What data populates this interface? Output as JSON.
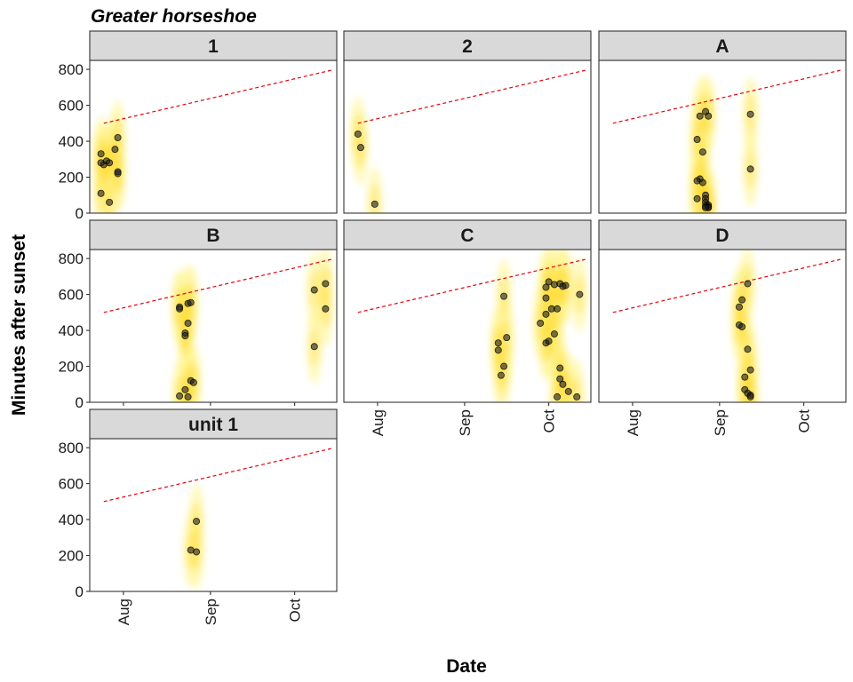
{
  "chart_data": {
    "type": "scatter",
    "title": "Greater horseshoe",
    "xlabel": "Date",
    "ylabel": "Minutes after sunset",
    "ylim": [
      0,
      850
    ],
    "yticks": [
      0,
      200,
      400,
      600,
      800
    ],
    "xticks": [
      "Aug",
      "Sep",
      "Oct"
    ],
    "xtick_dates": [
      "08-01",
      "09-01",
      "10-01"
    ],
    "xlim_dates": [
      "07-20",
      "10-16"
    ],
    "sunrise_line": {
      "style": "dashed",
      "color": "#e8000b",
      "points": [
        [
          "07-25",
          500
        ],
        [
          "10-14",
          795
        ]
      ]
    },
    "density_colors": [
      "#fffde0",
      "#fff27a",
      "#ffd000",
      "#ff9500",
      "#e85a00"
    ],
    "point_color": "#1a1a1a",
    "panels": [
      {
        "label": "1",
        "points": [
          [
            "07-24",
            330
          ],
          [
            "07-24",
            280
          ],
          [
            "07-25",
            270
          ],
          [
            "07-26",
            290
          ],
          [
            "07-24",
            110
          ],
          [
            "07-27",
            60
          ],
          [
            "07-30",
            420
          ],
          [
            "07-29",
            355
          ],
          [
            "07-30",
            230
          ],
          [
            "07-30",
            220
          ],
          [
            "07-27",
            280
          ]
        ]
      },
      {
        "label": "2",
        "points": [
          [
            "07-25",
            440
          ],
          [
            "07-26",
            365
          ],
          [
            "07-31",
            50
          ]
        ]
      },
      {
        "label": "A",
        "points": [
          [
            "08-24",
            410
          ],
          [
            "08-25",
            540
          ],
          [
            "08-27",
            565
          ],
          [
            "08-28",
            540
          ],
          [
            "08-26",
            340
          ],
          [
            "08-25",
            190
          ],
          [
            "08-24",
            180
          ],
          [
            "08-26",
            170
          ],
          [
            "08-24",
            80
          ],
          [
            "08-27",
            100
          ],
          [
            "08-27",
            80
          ],
          [
            "08-27",
            60
          ],
          [
            "08-28",
            45
          ],
          [
            "08-27",
            40
          ],
          [
            "08-28",
            35
          ],
          [
            "08-28",
            30
          ],
          [
            "08-27",
            30
          ],
          [
            "09-12",
            550
          ],
          [
            "09-12",
            245
          ]
        ]
      },
      {
        "label": "B",
        "points": [
          [
            "08-21",
            530
          ],
          [
            "08-21",
            520
          ],
          [
            "08-24",
            550
          ],
          [
            "08-25",
            555
          ],
          [
            "08-24",
            440
          ],
          [
            "08-23",
            385
          ],
          [
            "08-23",
            370
          ],
          [
            "08-25",
            120
          ],
          [
            "08-26",
            110
          ],
          [
            "08-23",
            70
          ],
          [
            "08-24",
            30
          ],
          [
            "08-21",
            35
          ],
          [
            "10-08",
            310
          ],
          [
            "10-08",
            625
          ],
          [
            "10-12",
            660
          ],
          [
            "10-12",
            520
          ]
        ]
      },
      {
        "label": "C",
        "points": [
          [
            "09-13",
            330
          ],
          [
            "09-13",
            290
          ],
          [
            "09-15",
            590
          ],
          [
            "09-15",
            200
          ],
          [
            "09-14",
            150
          ],
          [
            "09-16",
            360
          ],
          [
            "09-30",
            640
          ],
          [
            "10-01",
            670
          ],
          [
            "10-03",
            655
          ],
          [
            "10-05",
            660
          ],
          [
            "10-06",
            645
          ],
          [
            "10-07",
            650
          ],
          [
            "09-30",
            580
          ],
          [
            "10-02",
            520
          ],
          [
            "09-30",
            490
          ],
          [
            "09-30",
            330
          ],
          [
            "10-01",
            340
          ],
          [
            "10-03",
            380
          ],
          [
            "10-04",
            520
          ],
          [
            "10-05",
            190
          ],
          [
            "10-05",
            130
          ],
          [
            "10-06",
            100
          ],
          [
            "10-08",
            60
          ],
          [
            "10-11",
            30
          ],
          [
            "10-12",
            600
          ],
          [
            "10-04",
            30
          ],
          [
            "09-28",
            440
          ]
        ]
      },
      {
        "label": "D",
        "points": [
          [
            "09-08",
            530
          ],
          [
            "09-09",
            570
          ],
          [
            "09-11",
            660
          ],
          [
            "09-08",
            430
          ],
          [
            "09-09",
            420
          ],
          [
            "09-11",
            295
          ],
          [
            "09-12",
            180
          ],
          [
            "09-10",
            140
          ],
          [
            "09-10",
            70
          ],
          [
            "09-11",
            50
          ],
          [
            "09-12",
            40
          ],
          [
            "09-12",
            30
          ]
        ]
      },
      {
        "label": "unit 1",
        "points": [
          [
            "08-27",
            390
          ],
          [
            "08-25",
            230
          ],
          [
            "08-27",
            220
          ]
        ]
      }
    ]
  }
}
